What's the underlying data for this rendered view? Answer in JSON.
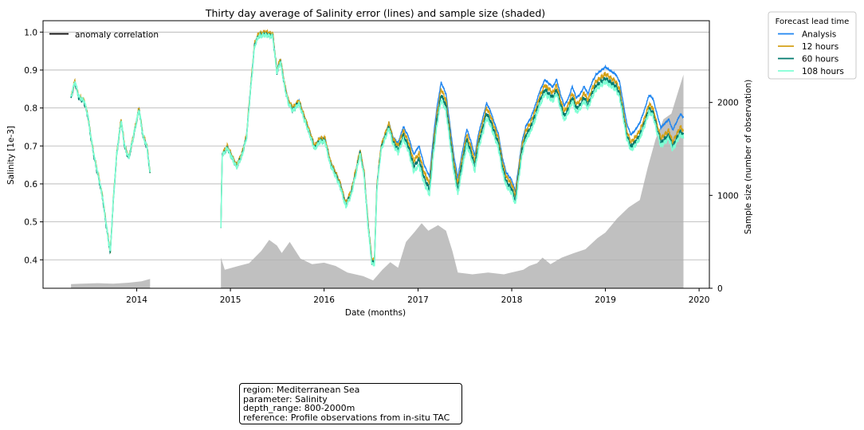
{
  "chart_data": {
    "type": "line",
    "title": "Thirty day average of Salinity error (lines) and sample size (shaded)",
    "xlabel": "Date (months)",
    "ylabel": "Salinity [1e-3]",
    "y2label": "Sample size (number of observation)",
    "xlim": [
      "2013-01-01",
      "2020-02-10"
    ],
    "ylim": [
      0.325,
      1.03
    ],
    "y2lim": [
      0,
      2880
    ],
    "x_ticks": [
      "2014-01-01",
      "2015-01-01",
      "2016-01-01",
      "2017-01-01",
      "2018-01-01",
      "2019-01-01",
      "2020-01-01"
    ],
    "x_tick_labels": [
      "2014",
      "2015",
      "2016",
      "2017",
      "2018",
      "2019",
      "2020"
    ],
    "y_ticks": [
      0.4,
      0.5,
      0.6,
      0.7,
      0.8,
      0.9,
      1.0
    ],
    "y_tick_labels": [
      "0.4",
      "0.5",
      "0.6",
      "0.7",
      "0.8",
      "0.9",
      "1.0"
    ],
    "y2_ticks": [
      0,
      1000,
      2000
    ],
    "y2_tick_labels": [
      "0",
      "1000",
      "2000"
    ],
    "grid": "horizontal",
    "legend_inner": {
      "placement": "top-left",
      "label": "anomaly correlation",
      "color": "#000000"
    },
    "legend_outer": {
      "placement": "outside-right",
      "title": "Forecast lead time",
      "entries": [
        "Analysis",
        "12 hours",
        "60 hours",
        "108 hours"
      ]
    },
    "series_colors": [
      "#1f85f0",
      "#d4a017",
      "#007a6e",
      "#7fffd4"
    ],
    "shade_color": "#c0c0c0",
    "base_curve": [
      [
        "2013-04-20",
        0.83
      ],
      [
        "2013-05-05",
        0.87
      ],
      [
        "2013-05-20",
        0.83
      ],
      [
        "2013-06-10",
        0.82
      ],
      [
        "2013-06-25",
        0.78
      ],
      [
        "2013-07-05",
        0.73
      ],
      [
        "2013-07-20",
        0.67
      ],
      [
        "2013-08-05",
        0.62
      ],
      [
        "2013-08-20",
        0.57
      ],
      [
        "2013-09-05",
        0.49
      ],
      [
        "2013-09-20",
        0.42
      ],
      [
        "2013-10-01",
        0.55
      ],
      [
        "2013-10-15",
        0.68
      ],
      [
        "2013-11-01",
        0.77
      ],
      [
        "2013-11-15",
        0.7
      ],
      [
        "2013-12-01",
        0.67
      ],
      [
        "2013-12-20",
        0.73
      ],
      [
        "2014-01-10",
        0.8
      ],
      [
        "2014-01-25",
        0.73
      ],
      [
        "2014-02-10",
        0.7
      ],
      [
        "2014-02-22",
        0.63
      ],
      null,
      [
        "2014-11-25",
        0.49
      ],
      [
        "2014-11-30",
        0.68
      ],
      [
        "2014-12-20",
        0.7
      ],
      [
        "2015-01-10",
        0.67
      ],
      [
        "2015-01-25",
        0.65
      ],
      [
        "2015-02-15",
        0.68
      ],
      [
        "2015-03-05",
        0.73
      ],
      [
        "2015-03-20",
        0.85
      ],
      [
        "2015-04-05",
        0.97
      ],
      [
        "2015-04-20",
        0.995
      ],
      [
        "2015-05-15",
        1.0
      ],
      [
        "2015-06-15",
        0.995
      ],
      [
        "2015-07-01",
        0.9
      ],
      [
        "2015-07-15",
        0.93
      ],
      [
        "2015-08-01",
        0.86
      ],
      [
        "2015-08-15",
        0.82
      ],
      [
        "2015-09-01",
        0.8
      ],
      [
        "2015-09-25",
        0.82
      ],
      [
        "2015-10-15",
        0.78
      ],
      [
        "2015-11-05",
        0.74
      ],
      [
        "2015-11-25",
        0.7
      ],
      [
        "2015-12-15",
        0.72
      ],
      [
        "2016-01-05",
        0.72
      ],
      [
        "2016-01-25",
        0.66
      ],
      [
        "2016-02-15",
        0.63
      ],
      [
        "2016-03-05",
        0.6
      ],
      [
        "2016-03-25",
        0.55
      ],
      [
        "2016-04-15",
        0.58
      ],
      [
        "2016-05-05",
        0.64
      ],
      [
        "2016-05-20",
        0.69
      ],
      [
        "2016-06-05",
        0.63
      ],
      [
        "2016-06-20",
        0.5
      ],
      [
        "2016-07-05",
        0.4
      ],
      [
        "2016-07-15",
        0.4
      ],
      [
        "2016-07-25",
        0.6
      ],
      [
        "2016-08-10",
        0.7
      ],
      [
        "2016-08-25",
        0.73
      ],
      [
        "2016-09-10",
        0.76
      ],
      [
        "2016-09-25",
        0.72
      ],
      [
        "2016-10-15",
        0.7
      ],
      [
        "2016-11-05",
        0.74
      ],
      [
        "2016-11-25",
        0.71
      ],
      [
        "2016-12-15",
        0.66
      ],
      [
        "2017-01-05",
        0.68
      ],
      [
        "2017-01-25",
        0.63
      ],
      [
        "2017-02-15",
        0.6
      ],
      [
        "2017-03-01",
        0.7
      ],
      [
        "2017-03-15",
        0.78
      ],
      [
        "2017-04-01",
        0.85
      ],
      [
        "2017-04-20",
        0.82
      ],
      [
        "2017-05-05",
        0.74
      ],
      [
        "2017-05-20",
        0.66
      ],
      [
        "2017-06-05",
        0.6
      ],
      [
        "2017-06-20",
        0.66
      ],
      [
        "2017-07-10",
        0.73
      ],
      [
        "2017-07-25",
        0.7
      ],
      [
        "2017-08-10",
        0.66
      ],
      [
        "2017-08-25",
        0.72
      ],
      [
        "2017-09-10",
        0.76
      ],
      [
        "2017-09-25",
        0.8
      ],
      [
        "2017-10-10",
        0.78
      ],
      [
        "2017-10-25",
        0.75
      ],
      [
        "2017-11-10",
        0.72
      ],
      [
        "2017-11-25",
        0.66
      ],
      [
        "2017-12-10",
        0.62
      ],
      [
        "2018-01-01",
        0.6
      ],
      [
        "2018-01-15",
        0.57
      ],
      [
        "2018-01-25",
        0.62
      ],
      [
        "2018-02-10",
        0.7
      ],
      [
        "2018-02-25",
        0.74
      ],
      [
        "2018-03-15",
        0.76
      ],
      [
        "2018-04-01",
        0.79
      ],
      [
        "2018-04-20",
        0.83
      ],
      [
        "2018-05-10",
        0.86
      ],
      [
        "2018-05-25",
        0.85
      ],
      [
        "2018-06-10",
        0.84
      ],
      [
        "2018-06-25",
        0.86
      ],
      [
        "2018-07-10",
        0.82
      ],
      [
        "2018-07-25",
        0.79
      ],
      [
        "2018-08-10",
        0.81
      ],
      [
        "2018-08-25",
        0.84
      ],
      [
        "2018-09-10",
        0.81
      ],
      [
        "2018-09-25",
        0.82
      ],
      [
        "2018-10-10",
        0.84
      ],
      [
        "2018-10-25",
        0.82
      ],
      [
        "2018-11-10",
        0.85
      ],
      [
        "2018-11-25",
        0.87
      ],
      [
        "2019-01-01",
        0.89
      ],
      [
        "2019-01-20",
        0.88
      ],
      [
        "2019-02-10",
        0.87
      ],
      [
        "2019-02-25",
        0.85
      ],
      [
        "2019-03-10",
        0.8
      ],
      [
        "2019-03-25",
        0.74
      ],
      [
        "2019-04-10",
        0.71
      ],
      [
        "2019-04-25",
        0.72
      ],
      [
        "2019-05-15",
        0.74
      ],
      [
        "2019-06-01",
        0.77
      ],
      [
        "2019-06-20",
        0.81
      ],
      [
        "2019-07-05",
        0.8
      ],
      [
        "2019-07-20",
        0.76
      ],
      [
        "2019-08-05",
        0.72
      ],
      [
        "2019-08-20",
        0.73
      ],
      [
        "2019-09-05",
        0.74
      ],
      [
        "2019-09-20",
        0.71
      ],
      [
        "2019-10-05",
        0.73
      ],
      [
        "2019-10-20",
        0.75
      ],
      [
        "2019-11-01",
        0.74
      ]
    ],
    "series": [
      {
        "name": "Analysis",
        "offsets": [
          [
            "2013-04-20",
            0.0
          ],
          [
            "2016-09-01",
            0.0
          ],
          [
            "2017-01-01",
            0.02
          ],
          [
            "2018-01-01",
            0.01
          ],
          [
            "2018-06-01",
            0.015
          ],
          [
            "2019-05-01",
            0.02
          ],
          [
            "2019-11-01",
            0.035
          ]
        ]
      },
      {
        "name": "12 hours",
        "offsets": [
          [
            "2013-04-20",
            0.0
          ],
          [
            "2016-09-01",
            0.0
          ],
          [
            "2017-01-01",
            0.0
          ],
          [
            "2018-06-01",
            0.0
          ],
          [
            "2019-11-01",
            0.0
          ]
        ]
      },
      {
        "name": "60 hours",
        "offsets": [
          [
            "2013-04-20",
            -0.003
          ],
          [
            "2016-09-01",
            -0.008
          ],
          [
            "2017-01-01",
            -0.015
          ],
          [
            "2018-06-01",
            -0.012
          ],
          [
            "2019-11-01",
            -0.012
          ]
        ]
      },
      {
        "name": "108 hours",
        "offsets": [
          [
            "2013-04-20",
            0.0
          ],
          [
            "2016-09-01",
            -0.012
          ],
          [
            "2017-01-01",
            -0.03
          ],
          [
            "2018-06-01",
            -0.022
          ],
          [
            "2019-11-01",
            -0.02
          ]
        ]
      }
    ],
    "sample_size": [
      [
        "2013-04-20",
        45
      ],
      [
        "2013-06-01",
        50
      ],
      [
        "2013-08-01",
        55
      ],
      [
        "2013-10-01",
        50
      ],
      [
        "2013-12-01",
        60
      ],
      [
        "2014-01-20",
        75
      ],
      [
        "2014-02-22",
        100
      ],
      null,
      [
        "2014-11-25",
        330
      ],
      [
        "2014-12-10",
        200
      ],
      [
        "2015-02-01",
        240
      ],
      [
        "2015-03-15",
        270
      ],
      [
        "2015-05-01",
        400
      ],
      [
        "2015-06-01",
        520
      ],
      [
        "2015-07-01",
        460
      ],
      [
        "2015-07-20",
        380
      ],
      [
        "2015-08-20",
        500
      ],
      [
        "2015-10-01",
        320
      ],
      [
        "2015-11-15",
        260
      ],
      [
        "2016-01-01",
        275
      ],
      [
        "2016-02-15",
        240
      ],
      [
        "2016-04-01",
        170
      ],
      [
        "2016-06-01",
        130
      ],
      [
        "2016-07-10",
        85
      ],
      [
        "2016-08-15",
        200
      ],
      [
        "2016-09-15",
        280
      ],
      [
        "2016-10-15",
        220
      ],
      [
        "2016-11-15",
        500
      ],
      [
        "2016-12-20",
        610
      ],
      [
        "2017-01-15",
        700
      ],
      [
        "2017-02-10",
        620
      ],
      [
        "2017-03-20",
        680
      ],
      [
        "2017-04-20",
        620
      ],
      [
        "2017-05-15",
        400
      ],
      [
        "2017-06-05",
        170
      ],
      [
        "2017-08-01",
        150
      ],
      [
        "2017-10-01",
        170
      ],
      [
        "2017-12-01",
        150
      ],
      [
        "2018-02-15",
        200
      ],
      [
        "2018-03-10",
        240
      ],
      [
        "2018-04-10",
        270
      ],
      [
        "2018-05-01",
        330
      ],
      [
        "2018-06-01",
        260
      ],
      [
        "2018-07-15",
        330
      ],
      [
        "2018-09-01",
        380
      ],
      [
        "2018-10-15",
        420
      ],
      [
        "2018-12-01",
        540
      ],
      [
        "2019-01-01",
        600
      ],
      [
        "2019-02-15",
        750
      ],
      [
        "2019-04-01",
        870
      ],
      [
        "2019-05-15",
        950
      ],
      [
        "2019-06-15",
        1300
      ],
      [
        "2019-07-15",
        1600
      ],
      [
        "2019-08-15",
        1820
      ],
      [
        "2019-09-15",
        1880
      ],
      [
        "2019-10-15",
        2150
      ],
      [
        "2019-11-01",
        2300
      ]
    ]
  },
  "info_box": {
    "lines": [
      "region: Mediterranean Sea",
      "parameter: Salinity",
      "depth_range: 800-2000m",
      "reference: Profile observations from in-situ TAC"
    ]
  }
}
